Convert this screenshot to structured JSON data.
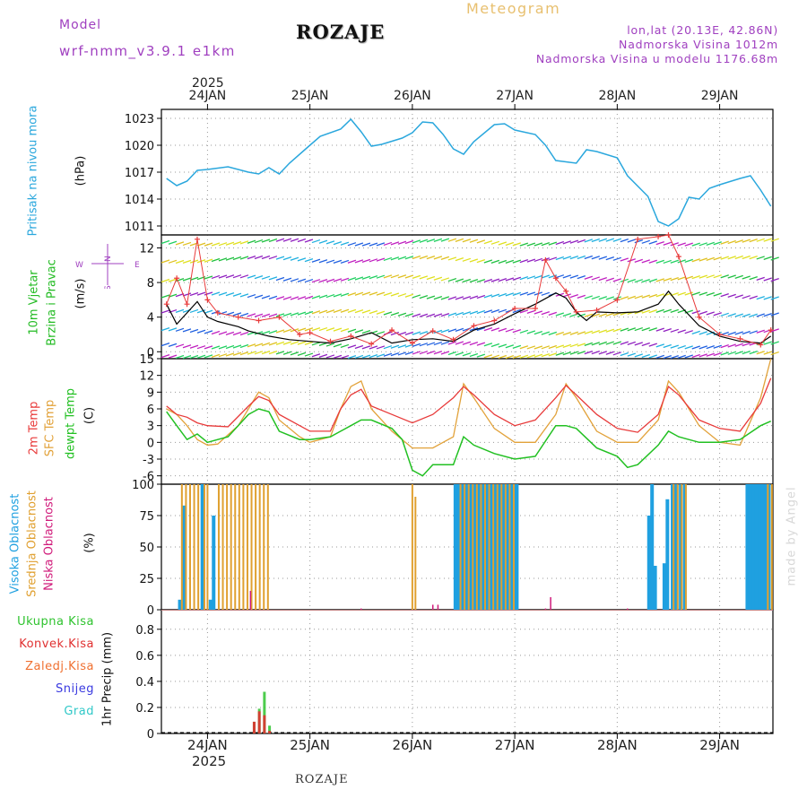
{
  "header": {
    "model_label": "Model",
    "model_name": "wrf-nmm_v3.9.1 e1km",
    "station": "ROZAJE",
    "product": "Meteogram",
    "lonlat": "lon,lat (20.13E, 42.86N)",
    "elevation": "Nadmorska Visina 1012m",
    "model_elevation": "Nadmorska Visina u modelu 1176.68m"
  },
  "footer": {
    "station": "ROZAJE",
    "credit": "made by Angel"
  },
  "colors": {
    "pressure": "#2aa7dd",
    "temp2m": "#e83a3a",
    "sfc": "#e2a23a",
    "dewpt": "#22c022",
    "high_cloud": "#1fa0e0",
    "mid_cloud": "#e0a030",
    "low_cloud": "#d01a7a",
    "total_precip": "#2ec32e",
    "conv_precip": "#e03030",
    "frozen": "#f07030",
    "snow": "#3a3ae0",
    "graupel": "#30c8c8",
    "wind_label": "#22bb22",
    "title": "#a040c0",
    "gust": "#e83a3a",
    "wind_speed": "#000000"
  },
  "time_axis": {
    "year": "2025",
    "labels": [
      "24JAN",
      "25JAN",
      "26JAN",
      "27JAN",
      "28JAN",
      "29JAN"
    ]
  },
  "panels": {
    "pressure": {
      "label": "Pritisak na nivou mora",
      "unit": "(hPa)"
    },
    "wind": {
      "label1": "10m Vjetar",
      "label2": "Brzina i Pravac",
      "unit": "(m/s)",
      "compass": [
        "N",
        "W",
        "E",
        "S"
      ]
    },
    "temp": {
      "label1": "2m Temp",
      "label2": "SFC Temp",
      "label3": "dewpt Temp",
      "unit": "(C)"
    },
    "cloud": {
      "label1": "Visoka Oblacnost",
      "label2": "Srednja Oblacnost",
      "label3": "Niska Oblacnost",
      "unit": "(%)"
    },
    "precip": {
      "labels": [
        "Ukupna Kisa",
        "Konvek.Kisa",
        "Zaledj.Kisa",
        "Snijeg",
        "Grad"
      ],
      "unit": "1hr Precip (mm)"
    }
  },
  "chart_data": [
    {
      "type": "line",
      "title": "",
      "ylabel": "(hPa)",
      "ylim": [
        1010,
        1024
      ],
      "yticks": [
        1011,
        1014,
        1017,
        1020,
        1023
      ],
      "series": [
        {
          "name": "Pritisak na nivou mora",
          "x": [
            23.6,
            23.7,
            23.8,
            23.9,
            24.0,
            24.2,
            24.4,
            24.5,
            24.6,
            24.7,
            24.8,
            25.0,
            25.1,
            25.3,
            25.4,
            25.5,
            25.6,
            25.7,
            25.9,
            26.0,
            26.1,
            26.2,
            26.3,
            26.4,
            26.5,
            26.6,
            26.8,
            26.9,
            27.0,
            27.2,
            27.3,
            27.4,
            27.6,
            27.7,
            27.8,
            28.0,
            28.1,
            28.3,
            28.4,
            28.5,
            28.6,
            28.7,
            28.8,
            28.9,
            29.0,
            29.2,
            29.3,
            29.4,
            29.5
          ],
          "y": [
            1016.3,
            1015.5,
            1016.0,
            1017.2,
            1017.3,
            1017.6,
            1017.0,
            1016.8,
            1017.5,
            1016.8,
            1018.0,
            1020.0,
            1021.0,
            1021.8,
            1022.9,
            1021.5,
            1019.9,
            1020.1,
            1020.8,
            1021.4,
            1022.6,
            1022.5,
            1021.2,
            1019.6,
            1019.0,
            1020.4,
            1022.3,
            1022.4,
            1021.7,
            1021.2,
            1020.0,
            1018.3,
            1018.0,
            1019.5,
            1019.3,
            1018.6,
            1016.6,
            1014.3,
            1011.5,
            1011.0,
            1011.8,
            1014.2,
            1014.0,
            1015.2,
            1015.6,
            1016.3,
            1016.6,
            1015.0,
            1013.2
          ]
        }
      ]
    },
    {
      "type": "line",
      "title": "",
      "ylabel": "(m/s)",
      "ylim": [
        -0.8,
        13.5
      ],
      "yticks": [
        0,
        4,
        8,
        12
      ],
      "series": [
        {
          "name": "wind speed",
          "x": [
            23.6,
            23.7,
            23.8,
            23.9,
            24.0,
            24.1,
            24.3,
            24.4,
            24.6,
            24.8,
            25.0,
            25.2,
            25.4,
            25.6,
            25.8,
            26.0,
            26.2,
            26.4,
            26.6,
            26.8,
            27.0,
            27.2,
            27.4,
            27.5,
            27.6,
            27.7,
            27.8,
            28.0,
            28.2,
            28.4,
            28.5,
            28.6,
            28.8,
            29.0,
            29.2,
            29.4,
            29.5
          ],
          "y": [
            5.5,
            3.2,
            4.5,
            5.8,
            4.0,
            3.5,
            2.9,
            2.4,
            1.8,
            1.4,
            1.2,
            1.0,
            1.5,
            2.2,
            1.0,
            1.4,
            1.5,
            1.2,
            2.5,
            3.2,
            4.4,
            5.5,
            6.8,
            6.2,
            4.6,
            3.6,
            4.6,
            4.5,
            4.6,
            5.5,
            7.0,
            5.5,
            3.0,
            1.8,
            1.2,
            1.0,
            1.8
          ]
        },
        {
          "name": "gust",
          "x": [
            23.6,
            23.7,
            23.8,
            23.9,
            24.0,
            24.1,
            24.3,
            24.5,
            24.7,
            24.9,
            25.0,
            25.2,
            25.4,
            25.6,
            25.8,
            26.0,
            26.2,
            26.4,
            26.6,
            26.8,
            27.0,
            27.2,
            27.3,
            27.4,
            27.5,
            27.6,
            27.8,
            28.0,
            28.2,
            28.4,
            28.5,
            28.6,
            28.8,
            29.0,
            29.2,
            29.4,
            29.5
          ],
          "y": [
            5.5,
            8.5,
            5.5,
            13.0,
            6.0,
            4.5,
            4.0,
            3.6,
            4.0,
            2.0,
            2.2,
            1.2,
            1.8,
            0.9,
            2.5,
            1.0,
            2.4,
            1.4,
            3.0,
            3.6,
            5.0,
            5.0,
            10.6,
            8.5,
            7.0,
            4.6,
            4.8,
            6.0,
            13.0,
            13.3,
            13.5,
            11.0,
            4.0,
            2.0,
            1.5,
            0.8,
            2.5
          ]
        }
      ]
    },
    {
      "type": "line",
      "title": "",
      "ylabel": "(C)",
      "ylim": [
        -7.5,
        15
      ],
      "yticks": [
        -6,
        -3,
        0,
        3,
        6,
        9,
        12,
        15
      ],
      "series": [
        {
          "name": "2m Temp",
          "x": [
            23.6,
            23.7,
            23.8,
            23.9,
            24.0,
            24.2,
            24.4,
            24.5,
            24.6,
            24.7,
            24.9,
            25.0,
            25.2,
            25.3,
            25.4,
            25.5,
            25.6,
            25.8,
            26.0,
            26.2,
            26.4,
            26.5,
            26.6,
            26.8,
            27.0,
            27.2,
            27.4,
            27.5,
            27.6,
            27.8,
            28.0,
            28.2,
            28.4,
            28.5,
            28.6,
            28.8,
            29.0,
            29.2,
            29.4,
            29.5
          ],
          "y": [
            6.5,
            5.0,
            4.5,
            3.5,
            3.0,
            2.8,
            6.5,
            8.2,
            7.5,
            5.0,
            3.0,
            2.0,
            2.0,
            6.0,
            8.5,
            9.5,
            6.5,
            5.0,
            3.5,
            5.0,
            8.0,
            10.0,
            8.5,
            5.0,
            3.0,
            4.0,
            8.0,
            10.2,
            8.5,
            5.0,
            2.5,
            1.8,
            5.0,
            10.0,
            8.5,
            4.0,
            2.5,
            2.0,
            7.0,
            11.5
          ]
        },
        {
          "name": "SFC Temp",
          "x": [
            23.6,
            23.7,
            23.8,
            23.9,
            24.0,
            24.1,
            24.3,
            24.5,
            24.6,
            24.7,
            24.9,
            25.0,
            25.2,
            25.3,
            25.4,
            25.5,
            25.6,
            25.8,
            26.0,
            26.2,
            26.4,
            26.5,
            26.6,
            26.8,
            27.0,
            27.2,
            27.4,
            27.5,
            27.6,
            27.8,
            28.0,
            28.2,
            28.4,
            28.5,
            28.6,
            28.8,
            29.0,
            29.2,
            29.4,
            29.5
          ],
          "y": [
            6.0,
            5.0,
            3.0,
            0.5,
            -0.5,
            -0.3,
            3.0,
            9.0,
            8.0,
            4.0,
            1.0,
            0.0,
            1.0,
            6.0,
            10.0,
            11.0,
            6.0,
            2.0,
            -1.0,
            -1.0,
            1.0,
            10.5,
            8.0,
            2.5,
            0.0,
            0.0,
            5.0,
            10.5,
            8.0,
            2.0,
            0.0,
            0.0,
            4.0,
            11.0,
            9.0,
            3.0,
            0.0,
            -0.5,
            8.0,
            15.0
          ]
        },
        {
          "name": "dewpt Temp",
          "x": [
            23.6,
            23.7,
            23.8,
            23.9,
            24.0,
            24.2,
            24.4,
            24.5,
            24.6,
            24.7,
            24.9,
            25.0,
            25.2,
            25.3,
            25.4,
            25.5,
            25.6,
            25.8,
            25.9,
            26.0,
            26.1,
            26.2,
            26.4,
            26.5,
            26.6,
            26.8,
            27.0,
            27.2,
            27.4,
            27.5,
            27.6,
            27.8,
            28.0,
            28.1,
            28.2,
            28.4,
            28.5,
            28.6,
            28.8,
            29.0,
            29.2,
            29.4,
            29.5
          ],
          "y": [
            5.5,
            3.0,
            0.5,
            1.5,
            0.0,
            1.0,
            5.0,
            6.0,
            5.5,
            2.0,
            0.5,
            0.5,
            1.0,
            2.0,
            3.0,
            4.0,
            4.0,
            2.5,
            0.5,
            -5.0,
            -6.0,
            -4.0,
            -4.0,
            1.0,
            -0.5,
            -2.0,
            -3.0,
            -2.5,
            3.0,
            3.0,
            2.5,
            -1.0,
            -2.5,
            -4.5,
            -4.0,
            -0.5,
            2.0,
            1.0,
            0.0,
            0.0,
            0.5,
            3.0,
            3.8
          ]
        }
      ]
    },
    {
      "type": "bar",
      "title": "",
      "ylabel": "(%)",
      "ylim": [
        0,
        100
      ],
      "yticks": [
        0,
        25,
        50,
        75,
        100
      ],
      "series": [
        {
          "name": "Visoka Oblacnost",
          "x": [
            23.73,
            23.77,
            23.95,
            24.03,
            24.06,
            26.42,
            26.44,
            26.46,
            26.48,
            26.5,
            26.52,
            26.54,
            26.56,
            26.58,
            26.6,
            26.62,
            26.64,
            26.66,
            26.68,
            26.7,
            26.72,
            26.74,
            26.76,
            26.78,
            26.8,
            26.82,
            26.84,
            26.86,
            26.88,
            26.9,
            26.92,
            26.94,
            26.96,
            26.98,
            27.0,
            27.02,
            28.31,
            28.34,
            28.37,
            28.46,
            28.49,
            28.54,
            28.56,
            28.58,
            28.62,
            28.66,
            29.27,
            29.3,
            29.33,
            29.36,
            29.39,
            29.42,
            29.45,
            29.48
          ],
          "y": [
            8,
            83,
            100,
            8,
            75,
            100,
            100,
            100,
            100,
            100,
            100,
            100,
            100,
            100,
            100,
            100,
            100,
            100,
            100,
            100,
            100,
            100,
            100,
            100,
            100,
            100,
            100,
            100,
            100,
            100,
            100,
            100,
            100,
            100,
            100,
            100,
            75,
            100,
            35,
            37,
            88,
            100,
            100,
            100,
            100,
            100,
            100,
            100,
            100,
            100,
            100,
            100,
            100,
            100
          ]
        },
        {
          "name": "Srednja Oblacnost",
          "x": [
            23.75,
            23.79,
            23.83,
            23.87,
            23.91,
            23.97,
            24.0,
            24.11,
            24.15,
            24.19,
            24.23,
            24.27,
            24.31,
            24.35,
            24.39,
            24.43,
            24.47,
            24.51,
            24.55,
            24.59,
            26.0,
            26.03,
            26.47,
            26.51,
            26.55,
            26.59,
            26.63,
            26.67,
            26.71,
            26.75,
            26.79,
            26.83,
            26.87,
            26.91,
            26.95,
            26.99,
            28.55,
            28.59,
            28.63,
            28.67,
            29.47,
            29.51
          ],
          "y": [
            100,
            100,
            100,
            100,
            100,
            100,
            100,
            100,
            100,
            100,
            100,
            100,
            100,
            100,
            100,
            100,
            100,
            100,
            100,
            100,
            100,
            90,
            100,
            100,
            100,
            100,
            100,
            100,
            100,
            100,
            100,
            100,
            100,
            100,
            100,
            100,
            100,
            100,
            100,
            100,
            100,
            100
          ]
        },
        {
          "name": "Niska Oblacnost",
          "x": [
            24.42,
            25.5,
            26.2,
            26.25,
            27.3,
            27.35,
            28.1
          ],
          "y": [
            15,
            1,
            4,
            4,
            1,
            10,
            1
          ]
        }
      ]
    },
    {
      "type": "bar",
      "title": "",
      "ylabel": "1hr Precip (mm)",
      "ylim": [
        0,
        0.95
      ],
      "yticks": [
        0,
        0.2,
        0.4,
        0.6,
        0.8
      ],
      "series": [
        {
          "name": "Ukupna Kisa",
          "x": [
            24.46,
            24.51,
            24.56,
            24.61
          ],
          "y": [
            0.09,
            0.19,
            0.32,
            0.06
          ]
        },
        {
          "name": "Konvek.Kisa",
          "x": [
            24.46,
            24.51,
            24.56,
            24.61
          ],
          "y": [
            0.09,
            0.17,
            0.14,
            0.02
          ]
        }
      ]
    }
  ]
}
